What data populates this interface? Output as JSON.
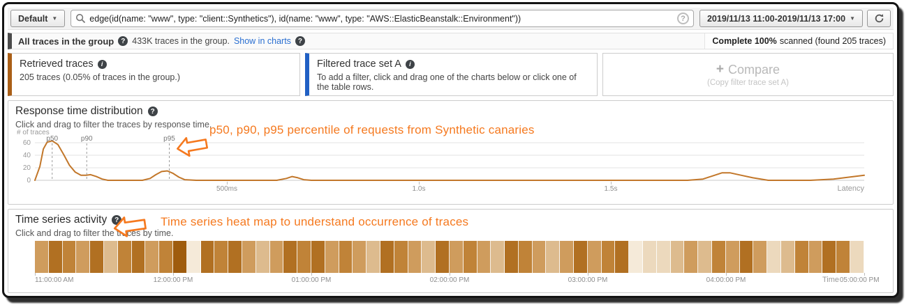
{
  "icons": {
    "help_glyph": "?",
    "info_glyph": "i",
    "plus_glyph": "+",
    "caret_glyph": "▼"
  },
  "colors": {
    "annotation_orange": "#f5791f",
    "curve_orange": "#c2772a",
    "retrieved_accent": "#aa5f17",
    "filtered_accent": "#2160c4",
    "group_accent": "#4b4b4b",
    "link_blue": "#2a6fd1"
  },
  "toolbar": {
    "group_selector_label": "Default",
    "search_query": "edge(id(name: \"www\", type: \"client::Synthetics\"), id(name: \"www\", type: \"AWS::ElasticBeanstalk::Environment\"))",
    "time_range_label": "2019/11/13 11:00-2019/11/13 17:00"
  },
  "group_bar": {
    "title": "All traces in the group",
    "count_text": "433K traces in the group.",
    "show_in_charts_label": "Show in charts",
    "scan_bold": "Complete 100%",
    "scan_rest": "scanned (found 205 traces)"
  },
  "cards": {
    "retrieved": {
      "title": "Retrieved traces",
      "body": "205 traces (0.05% of traces in the group.)"
    },
    "filtered": {
      "title": "Filtered trace set A",
      "body": "To add a filter, click and drag one of the charts below or click one of the table rows."
    },
    "compare": {
      "label": "Compare",
      "subtitle": "(Copy filter trace set A)"
    }
  },
  "response_panel": {
    "title": "Response time distribution",
    "subtitle": "Click and drag to filter the traces by response time.",
    "y_axis_label": "# of traces",
    "annotation": "p50, p90, p95 percentile of requests from Synthetic canaries"
  },
  "timeseries_panel": {
    "title": "Time series activity",
    "subtitle": "Click and drag to filter the traces by time.",
    "annotation": "Time series heat map to understand occurrence of traces",
    "x_axis_label": "Time"
  },
  "chart_data": [
    {
      "type": "line",
      "title": "Response time distribution",
      "xlabel": "Latency",
      "ylabel": "# of traces",
      "x_unit": "seconds",
      "xlim": [
        0,
        2.16
      ],
      "ylim": [
        0,
        70
      ],
      "grid": true,
      "line_color": "#c2772a",
      "yticks": [
        0,
        20,
        40,
        60
      ],
      "xticks": [
        {
          "value": 0.5,
          "label": "500ms"
        },
        {
          "value": 1.0,
          "label": "1.0s"
        },
        {
          "value": 1.5,
          "label": "1.5s"
        }
      ],
      "percentiles": [
        {
          "name": "p50",
          "value": 0.045
        },
        {
          "name": "p90",
          "value": 0.135
        },
        {
          "name": "p95",
          "value": 0.35
        }
      ],
      "series": [
        {
          "name": "# of traces",
          "x": [
            0,
            0.013,
            0.022,
            0.032,
            0.045,
            0.06,
            0.075,
            0.09,
            0.105,
            0.12,
            0.133,
            0.145,
            0.16,
            0.175,
            0.19,
            0.28,
            0.3,
            0.315,
            0.33,
            0.345,
            0.36,
            0.375,
            0.39,
            0.42,
            0.63,
            0.655,
            0.67,
            0.685,
            0.7,
            0.72,
            1.7,
            1.74,
            1.77,
            1.79,
            1.81,
            1.84,
            1.87,
            1.91,
            2.02,
            2.08,
            2.12,
            2.16
          ],
          "y": [
            0,
            22,
            50,
            61,
            63,
            57,
            41,
            24,
            13,
            8,
            8,
            9,
            6,
            2,
            0,
            0,
            3,
            9,
            14,
            15,
            11,
            5,
            1,
            0,
            0,
            3,
            6,
            4,
            1,
            0,
            0,
            2,
            8,
            12,
            12,
            8,
            4,
            0,
            0,
            2,
            5,
            8
          ]
        }
      ]
    },
    {
      "type": "heatmap",
      "title": "Time series activity",
      "xlabel": "Time",
      "cell_minutes": 6,
      "xticks": [
        "11:00:00 AM",
        "12:00:00 PM",
        "01:00:00 PM",
        "02:00:00 PM",
        "03:00:00 PM",
        "04:00:00 PM",
        "05:00:00 PM"
      ],
      "cells": [
        "#cf9c5d",
        "#b17022",
        "#c08338",
        "#cf9c5d",
        "#b17022",
        "#ddbb8e",
        "#c08338",
        "#b17022",
        "#cf9c5d",
        "#c08338",
        "#9f5c0d",
        "#f5ead9",
        "#b17022",
        "#c08338",
        "#b17022",
        "#cf9c5d",
        "#ddbb8e",
        "#cf9c5d",
        "#b17022",
        "#c08338",
        "#b17022",
        "#cf9c5d",
        "#c08338",
        "#cf9c5d",
        "#ddbb8e",
        "#b17022",
        "#c08338",
        "#cf9c5d",
        "#ddbb8e",
        "#b17022",
        "#cf9c5d",
        "#c08338",
        "#cf9c5d",
        "#ddbb8e",
        "#b17022",
        "#c08338",
        "#cf9c5d",
        "#ddbb8e",
        "#cf9c5d",
        "#b17022",
        "#cf9c5d",
        "#c08338",
        "#b17022",
        "#f5ead9",
        "#ecd9bd",
        "#ecd9bd",
        "#ddbb8e",
        "#cf9c5d",
        "#ddbb8e",
        "#c08338",
        "#cf9c5d",
        "#b17022",
        "#cf9c5d",
        "#ecd9bd",
        "#ddbb8e",
        "#c08338",
        "#cf9c5d",
        "#b17022",
        "#c08338",
        "#ecd9bd"
      ]
    }
  ]
}
